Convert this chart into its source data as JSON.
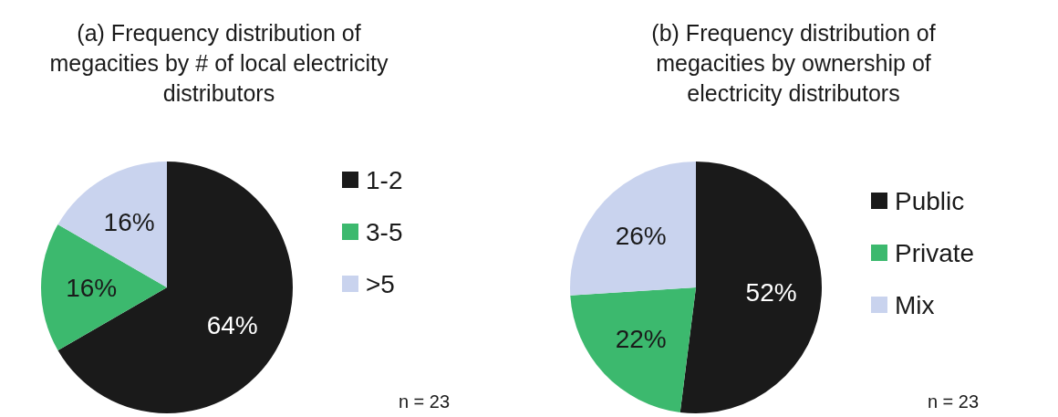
{
  "chart_data": [
    {
      "type": "pie",
      "title": "(a) Frequency distribution of megacities by # of local electricity distributors",
      "categories": [
        "1-2",
        "3-5",
        ">5"
      ],
      "values": [
        64,
        16,
        16
      ],
      "value_labels": [
        "64%",
        "16%",
        "16%"
      ],
      "colors": [
        "#1a1a1a",
        "#3cb96e",
        "#c9d3ee"
      ],
      "legend": "right",
      "annotations": [
        "n = 23"
      ]
    },
    {
      "type": "pie",
      "title": "(b) Frequency distribution of megacities by ownership of electricity distributors",
      "categories": [
        "Public",
        "Private",
        "Mix"
      ],
      "values": [
        52,
        22,
        26
      ],
      "value_labels": [
        "52%",
        "22%",
        "26%"
      ],
      "colors": [
        "#1a1a1a",
        "#3cb96e",
        "#c9d3ee"
      ],
      "legend": "right",
      "annotations": [
        "n = 23"
      ]
    }
  ]
}
